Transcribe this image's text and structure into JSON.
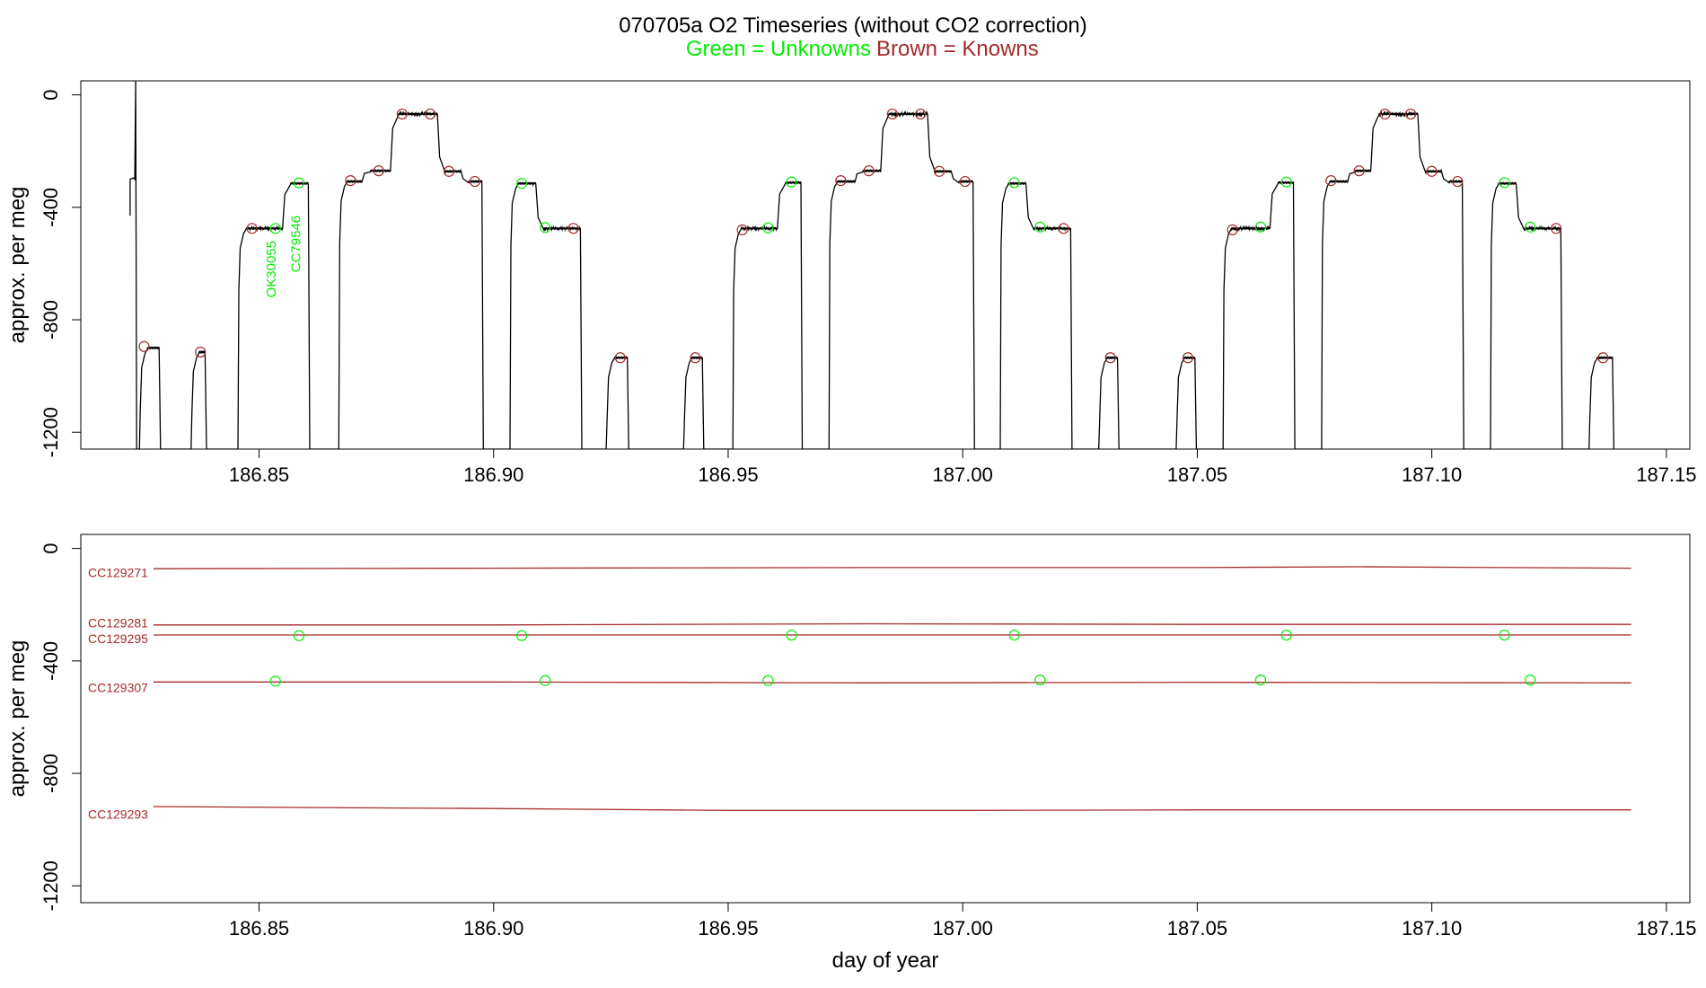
{
  "header": {
    "title": "070705a   O2 Timeseries (without CO2 correction)",
    "legend_unknowns": "Green = Unknowns",
    "legend_knowns": "Brown = Knowns",
    "color_unknowns": "#00ee00",
    "color_knowns": "#a52a2a"
  },
  "chart_data": [
    {
      "type": "line",
      "name": "top-panel",
      "ylabel": "approx. per meg",
      "xlabel": "",
      "xlim": [
        186.812,
        187.155
      ],
      "ylim": [
        -1260,
        50
      ],
      "xticks": [
        186.85,
        186.9,
        186.95,
        187.0,
        187.05,
        187.1,
        187.15
      ],
      "xtick_labels": [
        "186.85",
        "186.90",
        "186.95",
        "187.00",
        "187.05",
        "187.10",
        "187.15"
      ],
      "yticks": [
        0,
        -400,
        -800,
        -1200
      ],
      "ytick_labels": [
        "0",
        "-400",
        "-800",
        "-1200"
      ],
      "trace": {
        "baseline": -1260,
        "spike": {
          "x": 186.8237,
          "y": 50
        },
        "start": [
          [
            186.8225,
            -430
          ],
          [
            186.8225,
            -300
          ],
          [
            186.8232,
            -295
          ]
        ],
        "segments": [
          {
            "x0": 186.8245,
            "x1": 186.8287,
            "y": -900
          },
          {
            "x0": 186.8355,
            "x1": 186.8385,
            "y": -915
          },
          {
            "x0": 186.8455,
            "x1": 186.855,
            "y": -475
          },
          {
            "x0": 186.855,
            "x1": 186.8605,
            "y": -315
          },
          {
            "x0": 186.867,
            "x1": 186.872,
            "y": -308
          },
          {
            "x0": 186.872,
            "x1": 186.878,
            "y": -270
          },
          {
            "x0": 186.878,
            "x1": 186.888,
            "y": -68
          },
          {
            "x0": 186.888,
            "x1": 186.893,
            "y": -272
          },
          {
            "x0": 186.893,
            "x1": 186.8975,
            "y": -308
          },
          {
            "x0": 186.9035,
            "x1": 186.909,
            "y": -315
          },
          {
            "x0": 186.909,
            "x1": 186.9185,
            "y": -475
          },
          {
            "x0": 186.924,
            "x1": 186.9285,
            "y": -935
          },
          {
            "x0": 186.9405,
            "x1": 186.9445,
            "y": -935
          },
          {
            "x0": 186.951,
            "x1": 186.9605,
            "y": -475
          },
          {
            "x0": 186.9605,
            "x1": 186.9655,
            "y": -312
          },
          {
            "x0": 186.9715,
            "x1": 186.977,
            "y": -308
          },
          {
            "x0": 186.977,
            "x1": 186.9825,
            "y": -270
          },
          {
            "x0": 186.9825,
            "x1": 186.9925,
            "y": -68
          },
          {
            "x0": 186.9925,
            "x1": 186.9975,
            "y": -272
          },
          {
            "x0": 186.9975,
            "x1": 187.0022,
            "y": -308
          },
          {
            "x0": 187.008,
            "x1": 187.0135,
            "y": -315
          },
          {
            "x0": 187.0135,
            "x1": 187.023,
            "y": -475
          },
          {
            "x0": 187.029,
            "x1": 187.033,
            "y": -935
          },
          {
            "x0": 187.0455,
            "x1": 187.0495,
            "y": -935
          },
          {
            "x0": 187.0555,
            "x1": 187.0655,
            "y": -475
          },
          {
            "x0": 187.0655,
            "x1": 187.0705,
            "y": -312
          },
          {
            "x0": 187.0765,
            "x1": 187.082,
            "y": -308
          },
          {
            "x0": 187.082,
            "x1": 187.087,
            "y": -270
          },
          {
            "x0": 187.087,
            "x1": 187.097,
            "y": -68
          },
          {
            "x0": 187.097,
            "x1": 187.102,
            "y": -272
          },
          {
            "x0": 187.102,
            "x1": 187.1065,
            "y": -308
          },
          {
            "x0": 187.1125,
            "x1": 187.118,
            "y": -315
          },
          {
            "x0": 187.118,
            "x1": 187.1275,
            "y": -475
          },
          {
            "x0": 187.1335,
            "x1": 187.1385,
            "y": -935
          }
        ]
      },
      "knowns_points": [
        {
          "x": 186.8255,
          "y": -895
        },
        {
          "x": 186.8375,
          "y": -915
        },
        {
          "x": 186.8485,
          "y": -475
        },
        {
          "x": 186.8695,
          "y": -305
        },
        {
          "x": 186.8755,
          "y": -270
        },
        {
          "x": 186.8805,
          "y": -68
        },
        {
          "x": 186.8865,
          "y": -68
        },
        {
          "x": 186.8905,
          "y": -272
        },
        {
          "x": 186.896,
          "y": -308
        },
        {
          "x": 186.917,
          "y": -475
        },
        {
          "x": 186.927,
          "y": -935
        },
        {
          "x": 186.943,
          "y": -935
        },
        {
          "x": 186.953,
          "y": -480
        },
        {
          "x": 186.974,
          "y": -305
        },
        {
          "x": 186.98,
          "y": -270
        },
        {
          "x": 186.985,
          "y": -68
        },
        {
          "x": 186.991,
          "y": -68
        },
        {
          "x": 186.995,
          "y": -272
        },
        {
          "x": 187.0005,
          "y": -308
        },
        {
          "x": 187.0215,
          "y": -475
        },
        {
          "x": 187.0315,
          "y": -935
        },
        {
          "x": 187.048,
          "y": -935
        },
        {
          "x": 187.0575,
          "y": -480
        },
        {
          "x": 187.0785,
          "y": -305
        },
        {
          "x": 187.0845,
          "y": -270
        },
        {
          "x": 187.09,
          "y": -68
        },
        {
          "x": 187.0955,
          "y": -68
        },
        {
          "x": 187.1,
          "y": -272
        },
        {
          "x": 187.1055,
          "y": -308
        },
        {
          "x": 187.1265,
          "y": -475
        },
        {
          "x": 187.1365,
          "y": -935
        }
      ],
      "unknowns_points": [
        {
          "x": 186.8535,
          "y": -475
        },
        {
          "x": 186.8585,
          "y": -313
        },
        {
          "x": 186.906,
          "y": -315
        },
        {
          "x": 186.911,
          "y": -472
        },
        {
          "x": 186.9585,
          "y": -473
        },
        {
          "x": 186.9635,
          "y": -310
        },
        {
          "x": 187.011,
          "y": -312
        },
        {
          "x": 187.0165,
          "y": -470
        },
        {
          "x": 187.0635,
          "y": -470
        },
        {
          "x": 187.069,
          "y": -310
        },
        {
          "x": 187.1155,
          "y": -312
        },
        {
          "x": 187.121,
          "y": -470
        }
      ],
      "annotations": [
        {
          "text": "OK30055",
          "x": 186.8535,
          "y": -620
        },
        {
          "text": "CC79546",
          "x": 186.8588,
          "y": -530
        }
      ]
    },
    {
      "type": "line",
      "name": "bottom-panel",
      "ylabel": "approx. per meg",
      "xlabel": "day of year",
      "xlim": [
        186.812,
        187.155
      ],
      "ylim": [
        -1260,
        50
      ],
      "xticks": [
        186.85,
        186.9,
        186.95,
        187.0,
        187.05,
        187.1,
        187.15
      ],
      "xtick_labels": [
        "186.85",
        "186.90",
        "186.95",
        "187.00",
        "187.05",
        "187.10",
        "187.15"
      ],
      "yticks": [
        0,
        -400,
        -800,
        -1200
      ],
      "ytick_labels": [
        "0",
        "-400",
        "-800",
        "-1200"
      ],
      "series": [
        {
          "name": "CC129271",
          "x": [
            186.8275,
            186.9,
            186.98,
            187.05,
            187.085,
            187.1425
          ],
          "y": [
            -72,
            -70,
            -68,
            -68,
            -65,
            -70
          ]
        },
        {
          "name": "CC129281",
          "x": [
            186.8275,
            186.9,
            186.98,
            187.05,
            187.1425
          ],
          "y": [
            -272,
            -272,
            -268,
            -270,
            -270
          ]
        },
        {
          "name": "CC129295",
          "x": [
            186.8275,
            186.9,
            186.98,
            187.05,
            187.1425
          ],
          "y": [
            -308,
            -308,
            -308,
            -308,
            -308
          ]
        },
        {
          "name": "CC129307",
          "x": [
            186.8275,
            186.9,
            186.98,
            187.05,
            187.1425
          ],
          "y": [
            -475,
            -475,
            -478,
            -476,
            -478
          ]
        },
        {
          "name": "CC129293",
          "x": [
            186.8275,
            186.9,
            186.95,
            187.0,
            187.05,
            187.1425
          ],
          "y": [
            -918,
            -925,
            -932,
            -932,
            -930,
            -930
          ]
        }
      ],
      "series_labels": [
        {
          "text": "CC129271",
          "y": -85
        },
        {
          "text": "CC129281",
          "y": -265
        },
        {
          "text": "CC129295",
          "y": -320
        },
        {
          "text": "CC129307",
          "y": -495
        },
        {
          "text": "CC129293",
          "y": -945
        }
      ],
      "unknowns_points": [
        {
          "x": 186.8535,
          "y": -472
        },
        {
          "x": 186.8585,
          "y": -310
        },
        {
          "x": 186.906,
          "y": -310
        },
        {
          "x": 186.911,
          "y": -470
        },
        {
          "x": 186.9585,
          "y": -470
        },
        {
          "x": 186.9635,
          "y": -308
        },
        {
          "x": 187.011,
          "y": -308
        },
        {
          "x": 187.0165,
          "y": -468
        },
        {
          "x": 187.0635,
          "y": -468
        },
        {
          "x": 187.069,
          "y": -308
        },
        {
          "x": 187.1155,
          "y": -308
        },
        {
          "x": 187.121,
          "y": -468
        }
      ]
    }
  ]
}
